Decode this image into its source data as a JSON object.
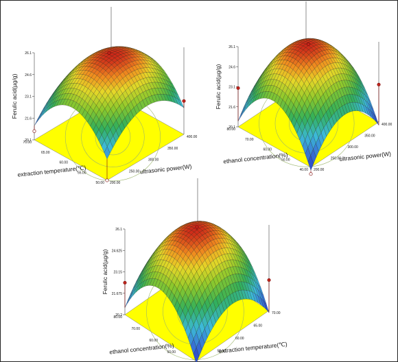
{
  "chart_data": [
    {
      "type": "surface3d",
      "title": "",
      "zlabel": "Ferulic acid(µg/g)",
      "ylabel": "ultrasonic power(W)",
      "xlabel": "extraction temperature(℃)",
      "zticks": [
        "20.1",
        "21.6",
        "23.1",
        "24.6",
        "26.1"
      ],
      "yticks": [
        "200.00",
        "250.00",
        "300.00",
        "350.00",
        "400.00"
      ],
      "xticks": [
        "50.00",
        "55.00",
        "60.00",
        "65.00",
        "70.00"
      ],
      "zrange": [
        20.1,
        26.1
      ],
      "xrange": [
        50,
        70
      ],
      "yrange": [
        200,
        400
      ],
      "surface": {
        "peak": 25.8,
        "x_at_peak": 59.5,
        "y_at_peak": 305,
        "min": 20.4
      },
      "design_points": [
        {
          "x": 60,
          "y": 300,
          "z": 25.9
        },
        {
          "x": 70,
          "y": 200,
          "z": 20.7
        },
        {
          "x": 50,
          "y": 400,
          "z": 22.4
        },
        {
          "x": 50,
          "y": 200,
          "z": 20.1
        }
      ]
    },
    {
      "type": "surface3d",
      "title": "",
      "zlabel": "Ferulic acid(µg/g)",
      "ylabel": "ultrasonic power(W)",
      "xlabel": "ethanol concentration(%)",
      "zticks": [
        "20.1",
        "21.6",
        "23.1",
        "24.6",
        "26.1"
      ],
      "yticks": [
        "200.00",
        "250.00",
        "300.00",
        "350.00",
        "400.00"
      ],
      "xticks": [
        "40.00",
        "50.00",
        "60.00",
        "70.00",
        "80.00"
      ],
      "zrange": [
        20.1,
        26.1
      ],
      "xrange": [
        40,
        80
      ],
      "yrange": [
        200,
        400
      ],
      "surface": {
        "peak": 26.0,
        "x_at_peak": 61,
        "y_at_peak": 300,
        "min": 19.7
      },
      "design_points": [
        {
          "x": 60,
          "y": 300,
          "z": 26.1
        },
        {
          "x": 80,
          "y": 200,
          "z": 23.0
        },
        {
          "x": 40,
          "y": 400,
          "z": 22.9
        },
        {
          "x": 40,
          "y": 200,
          "z": 19.6
        }
      ]
    },
    {
      "type": "surface3d",
      "title": "",
      "zlabel": "Ferulic acid(µg/g)",
      "ylabel": "extraction temperature(℃)",
      "xlabel": "ethanol concentration(%)",
      "zticks": [
        "20.2",
        "21.675",
        "23.15",
        "24.625",
        "26.1"
      ],
      "yticks": [
        "50.00",
        "55.00",
        "60.00",
        "65.00",
        "70.00"
      ],
      "xticks": [
        "40.00",
        "50.00",
        "60.00",
        "70.00",
        "80.00"
      ],
      "zrange": [
        20.2,
        26.1
      ],
      "xrange": [
        40,
        80
      ],
      "yrange": [
        50,
        70
      ],
      "surface": {
        "peak": 25.9,
        "x_at_peak": 61,
        "y_at_peak": 60,
        "min": 19.9
      },
      "design_points": [
        {
          "x": 60,
          "y": 60,
          "z": 26.1
        },
        {
          "x": 80,
          "y": 50,
          "z": 22.4
        },
        {
          "x": 40,
          "y": 70,
          "z": 22.3
        },
        {
          "x": 40,
          "y": 50,
          "z": 19.9
        }
      ]
    }
  ]
}
